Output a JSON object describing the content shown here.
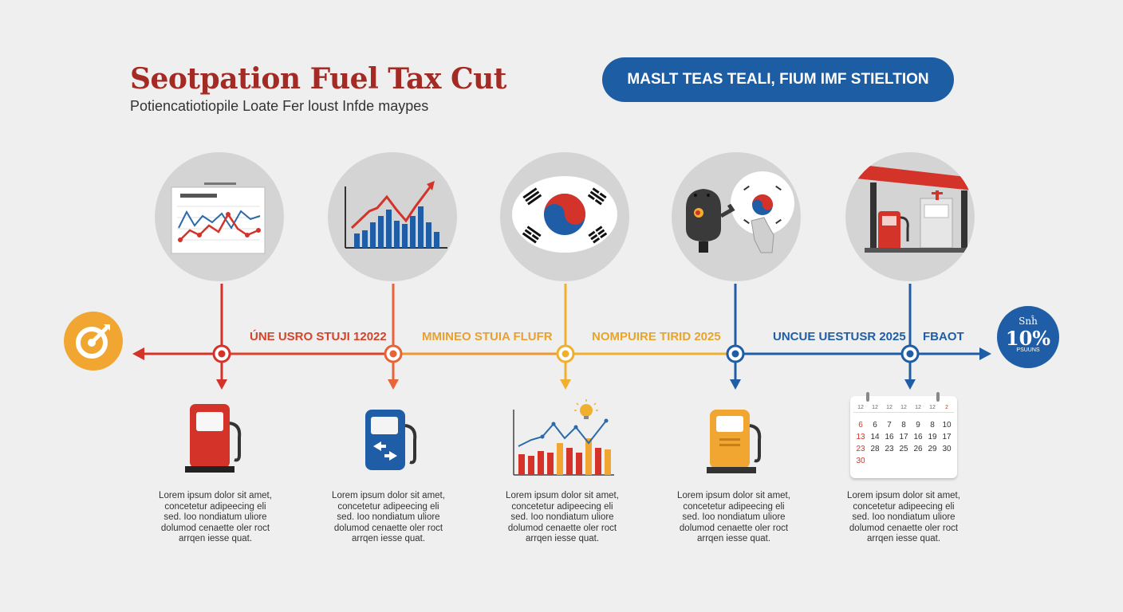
{
  "header": {
    "title": "Seotpation Fuel Tax Cut",
    "subtitle": "Potiencatiotiopile Loate Fer loust Infde maypes",
    "pill_text": "MASLT TEAS TEALI, FIUM IMF STIELTION"
  },
  "colors": {
    "red": "#d4332a",
    "orange": "#e8623a",
    "yellow": "#f0b02e",
    "blue": "#1f5ea6",
    "background": "#efefef",
    "circle_gray": "#d4d4d4"
  },
  "timeline": {
    "labels": [
      "ÚNE USRO STUJI 12022",
      "MMINEO  STUIA FLUFR",
      "NOMPUIRE TIRID 2025",
      "UNCUE UESTUSR 2025",
      "FBAOT"
    ],
    "start_badge_icon": "target-icon",
    "end_badge": {
      "line1": "Snĥ",
      "value": "10%",
      "line3": "PSUUNS"
    }
  },
  "top_icons": [
    "line-chart-report-icon",
    "growth-bar-chart-icon",
    "korean-flag-icon",
    "ev-charger-flag-icon",
    "gas-station-icon"
  ],
  "bottom_icons": [
    "red-fuel-pump-icon",
    "blue-fuel-pump-icon",
    "bar-line-chart-idea-icon",
    "yellow-fuel-pump-icon",
    "calendar-icon"
  ],
  "calendar": {
    "header": [
      "12",
      "12",
      "12",
      "12",
      "12",
      "12",
      "2"
    ],
    "rows": [
      [
        "6",
        "6",
        "7",
        "8",
        "9",
        "8",
        "10"
      ],
      [
        "13",
        "14",
        "16",
        "17",
        "16",
        "19",
        "17"
      ],
      [
        "23",
        "28",
        "23",
        "25",
        "26",
        "29",
        "30"
      ],
      [
        "30"
      ]
    ]
  },
  "descriptions": [
    "Lorem ipsum dolor sit amet,\nconcetetur adipeecing eli\nsed. Ioo nondiatum uliore\ndolumod cenaette oler roct\narrqen iesse quat.",
    "Lorem ipsum dolor sit amet,\nconcetetur adipeecing eli\nsed. Ioo nondiatum uliore\ndolumod cenaette oler roct\narrqen iesse quat.",
    "Lorem ipsum dolor sit amet,\nconcetetur adipeecing eli\nsed. Ioo nondiatum uliore\ndolumod cenaette oler roct\narrqen iesse quat.",
    "Lorem ipsum dolor sit amet,\nconcetetur adipeecing eli\nsed. Ioo nondiatum uliore\ndolumod cenaette oler roct\narrqen iesse quat.",
    "Lorem ipsum dolor sit amet,\nconcetetur adipeecing eli\nsed. Ioo nondiatum uliore\ndolumod cenaette oler roct\narrqen iesse quat."
  ]
}
